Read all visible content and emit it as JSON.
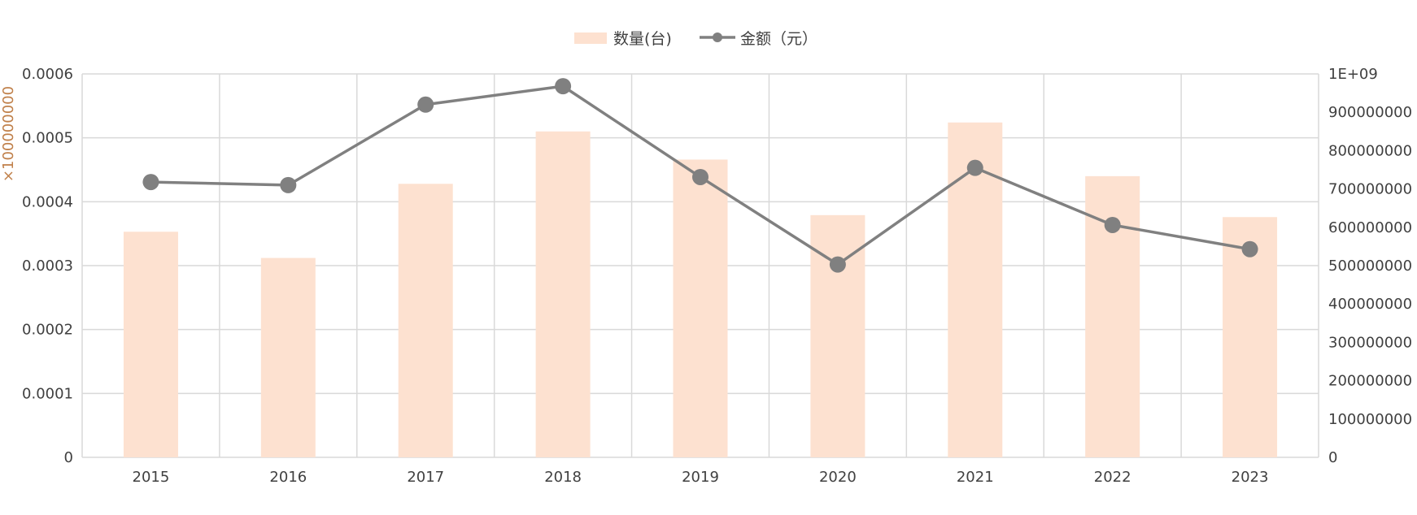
{
  "chart_data": {
    "type": "bar",
    "categories": [
      "2015",
      "2016",
      "2017",
      "2018",
      "2019",
      "2020",
      "2021",
      "2022",
      "2023"
    ],
    "series": [
      {
        "name": "数量(台)",
        "type": "bar",
        "axis": "left",
        "values": [
          0.000353,
          0.000312,
          0.000428,
          0.00051,
          0.000466,
          0.000379,
          0.000524,
          0.00044,
          0.000376
        ]
      },
      {
        "name": "金额（元）",
        "type": "line",
        "axis": "right",
        "values": [
          718000000,
          710000000,
          920000000,
          968000000,
          731000000,
          503000000,
          755000000,
          606000000,
          543000000
        ]
      }
    ],
    "y_left": {
      "min": 0,
      "max": 0.0006,
      "ticks": [
        "0",
        "0.0001",
        "0.0002",
        "0.0003",
        "0.0004",
        "0.0005",
        "0.0006"
      ],
      "unit_label": "×100000000"
    },
    "y_right": {
      "min": 0,
      "max": 1000000000,
      "ticks": [
        "0",
        "100000000",
        "200000000",
        "300000000",
        "400000000",
        "500000000",
        "600000000",
        "700000000",
        "800000000",
        "900000000",
        "1E+09"
      ]
    },
    "grid": true,
    "legend_position": "top-center",
    "colors": {
      "bar": "#fde1d0",
      "line": "#808080",
      "grid": "#d9d9d9",
      "tick": "#404040",
      "unit": "#c0804a"
    }
  }
}
